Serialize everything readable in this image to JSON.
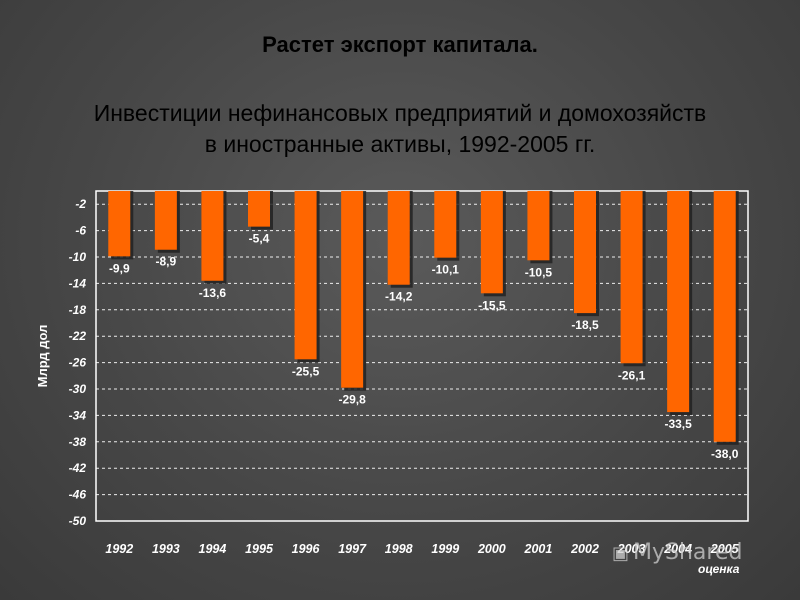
{
  "title": "Растет экспорт капитала.",
  "subtitle_line1": "Инвестиции нефинансовых предприятий и домохозяйств",
  "subtitle_line2": "в иностранные активы, 1992-2005 гг.",
  "watermark": "MyShared",
  "colors": {
    "bar": "#ff6600",
    "bar_shadow": "#222222",
    "plot_border": "#ffffff",
    "grid": "#ffffff",
    "text": "#ffffff"
  },
  "chart_data": {
    "type": "bar",
    "ylabel": "Млрд дол",
    "categories": [
      "1992",
      "1993",
      "1994",
      "1995",
      "1996",
      "1997",
      "1998",
      "1999",
      "2000",
      "2001",
      "2002",
      "2003",
      "2004",
      "2005"
    ],
    "category_note": "оценка",
    "values": [
      -9.9,
      -8.9,
      -13.6,
      -5.4,
      -25.5,
      -29.8,
      -14.2,
      -10.1,
      -15.5,
      -10.5,
      -18.5,
      -26.1,
      -33.5,
      -38.0
    ],
    "value_labels": [
      "-9,9",
      "-8,9",
      "-13,6",
      "-5,4",
      "-25,5",
      "-29,8",
      "-14,2",
      "-10,1",
      "-15,5",
      "-10,5",
      "-18,5",
      "-26,1",
      "-33,5",
      "-38,0"
    ],
    "ylim": [
      -50,
      0
    ],
    "yticks": [
      -2,
      -6,
      -10,
      -14,
      -18,
      -22,
      -26,
      -30,
      -34,
      -38,
      -42,
      -46,
      -50
    ],
    "grid": true,
    "gridline_style": "dashed"
  }
}
